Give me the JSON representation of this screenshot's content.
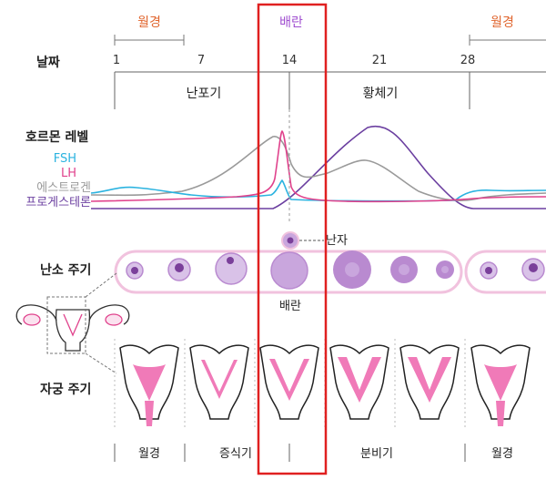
{
  "colors": {
    "menstruation": "#e0662f",
    "ovulation": "#a04fd0",
    "fsh": "#2bb3e0",
    "lh": "#e0428c",
    "estrogen": "#9a9a9a",
    "progesterone": "#6b3fa0",
    "highlight": "#e02020",
    "uterus_lining": "#f07ab8",
    "ovary_band": "#f1c2de",
    "follicle": "#b98ad0"
  },
  "top_labels": {
    "menstruation_left": "월경",
    "ovulation": "배란",
    "menstruation_right": "월경"
  },
  "days": {
    "row_label": "날짜",
    "ticks": [
      "1",
      "7",
      "14",
      "21",
      "28"
    ]
  },
  "phases": {
    "follicular": "난포기",
    "luteal": "황체기"
  },
  "hormones": {
    "title": "호르몬 레벨",
    "fsh": "FSH",
    "lh": "LH",
    "estrogen": "에스트로겐",
    "progesterone": "프로게스테론"
  },
  "ovary": {
    "egg_label": "난자",
    "row_label": "난소 주기",
    "ovulation_label": "배란"
  },
  "uterus": {
    "row_label": "자궁 주기",
    "phases": [
      "월경",
      "증식기",
      "분비기",
      "월경"
    ]
  }
}
